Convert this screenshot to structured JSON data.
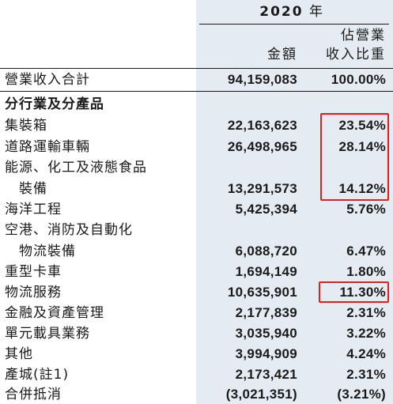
{
  "header": {
    "year": "2020",
    "year_suffix": "年",
    "share_line1": "佔營業",
    "share_line2": "收入比重",
    "amount_col": "金額"
  },
  "total": {
    "label": "營業收入合計",
    "amount": "94,159,083",
    "share": "100.00%"
  },
  "section_title": "分行業及分產品",
  "rows": [
    {
      "label": "集裝箱",
      "amount": "22,163,623",
      "share": "23.54%"
    },
    {
      "label": "道路運輸車輛",
      "amount": "26,498,965",
      "share": "28.14%"
    },
    {
      "label": "能源、化工及液態食品",
      "label_cont": "裝備",
      "amount": "13,291,573",
      "share": "14.12%"
    },
    {
      "label": "海洋工程",
      "amount": "5,425,394",
      "share": "5.76%"
    },
    {
      "label": "空港、消防及自動化",
      "label_cont": "物流裝備",
      "amount": "6,088,720",
      "share": "6.47%"
    },
    {
      "label": "重型卡車",
      "amount": "1,694,149",
      "share": "1.80%"
    },
    {
      "label": "物流服務",
      "amount": "10,635,901",
      "share": "11.30%"
    },
    {
      "label": "金融及資產管理",
      "amount": "2,177,839",
      "share": "2.31%"
    },
    {
      "label": "單元載具業務",
      "amount": "3,035,940",
      "share": "3.22%"
    },
    {
      "label": "其他",
      "amount": "3,994,909",
      "share": "4.24%"
    },
    {
      "label": "產城(註1)",
      "amount": "2,173,421",
      "share": "2.31%"
    },
    {
      "label": "合併抵消",
      "amount": "(3,021,351)",
      "share": "(3.21%)"
    }
  ],
  "highlight_color": "#e02020",
  "shade_color": "#e5ebf3"
}
